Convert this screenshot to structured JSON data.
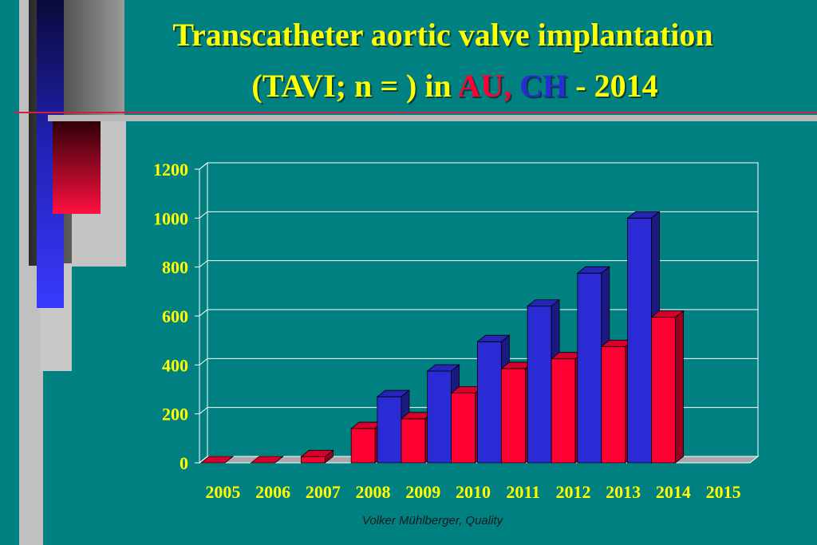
{
  "title": {
    "line1": "Transcatheter aortic valve implantation",
    "line2_pre": "(TAVI;  n = ) in ",
    "line2_au": "AU,",
    "line2_sp": " ",
    "line2_ch": "CH",
    "line2_post": " - 2014"
  },
  "footer": "Volker Mühlberger, Quality",
  "colors": {
    "background": "#008080",
    "au": "#ff0033",
    "ch": "#2b2bd6",
    "title": "#ffff00",
    "axis_labels": "#ffff00"
  },
  "chart_data": {
    "type": "bar",
    "categories": [
      "2005",
      "2006",
      "2007",
      "2008",
      "2009",
      "2010",
      "2011",
      "2012",
      "2013",
      "2014",
      "2015"
    ],
    "series": [
      {
        "name": "AU",
        "color": "#ff0033",
        "values": [
          0,
          0,
          25,
          140,
          180,
          285,
          385,
          425,
          475,
          595,
          null
        ]
      },
      {
        "name": "CH",
        "color": "#2b2bd6",
        "values": [
          null,
          null,
          null,
          null,
          270,
          375,
          495,
          640,
          775,
          1000,
          null
        ]
      }
    ],
    "y_ticks": [
      0,
      200,
      400,
      600,
      800,
      1000,
      1200
    ],
    "ylim": [
      0,
      1200
    ],
    "grid": true,
    "style": "3d"
  }
}
